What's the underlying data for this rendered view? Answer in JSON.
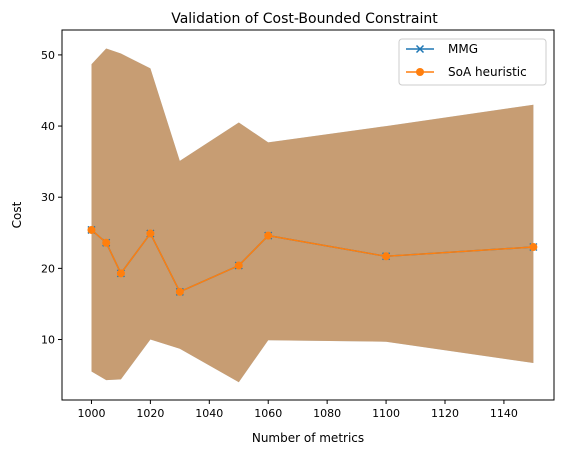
{
  "chart_data": {
    "type": "line",
    "title": "Validation of Cost-Bounded Constraint",
    "xlabel": "Number of metrics",
    "ylabel": "Cost",
    "xlim": [
      990,
      1157
    ],
    "ylim": [
      1.5,
      53.5
    ],
    "xticks": [
      1000,
      1020,
      1040,
      1060,
      1080,
      1100,
      1120,
      1140
    ],
    "yticks": [
      10,
      20,
      30,
      40,
      50
    ],
    "grid": false,
    "legend_position": "top-right",
    "x": [
      1000,
      1005,
      1010,
      1020,
      1030,
      1050,
      1060,
      1100,
      1150
    ],
    "series": [
      {
        "name": "MMG",
        "marker": "x",
        "color": "#1f77b4",
        "values": [
          25.4,
          23.6,
          19.3,
          24.9,
          16.7,
          20.4,
          24.6,
          21.7,
          23.0
        ]
      },
      {
        "name": "SoA heuristic",
        "marker": "o",
        "color": "#ff7f0e",
        "values": [
          25.4,
          23.6,
          19.3,
          24.9,
          16.7,
          20.4,
          24.6,
          21.7,
          23.0
        ]
      }
    ],
    "band": {
      "color_mmg": "#1f77b4",
      "color_soa": "#ff7f0e",
      "lower": [
        5.5,
        4.3,
        4.4,
        10.0,
        8.7,
        4.0,
        9.9,
        9.7,
        6.7
      ],
      "upper": [
        48.7,
        50.9,
        50.2,
        48.1,
        35.1,
        40.5,
        37.7,
        40.0,
        43.0
      ]
    }
  }
}
